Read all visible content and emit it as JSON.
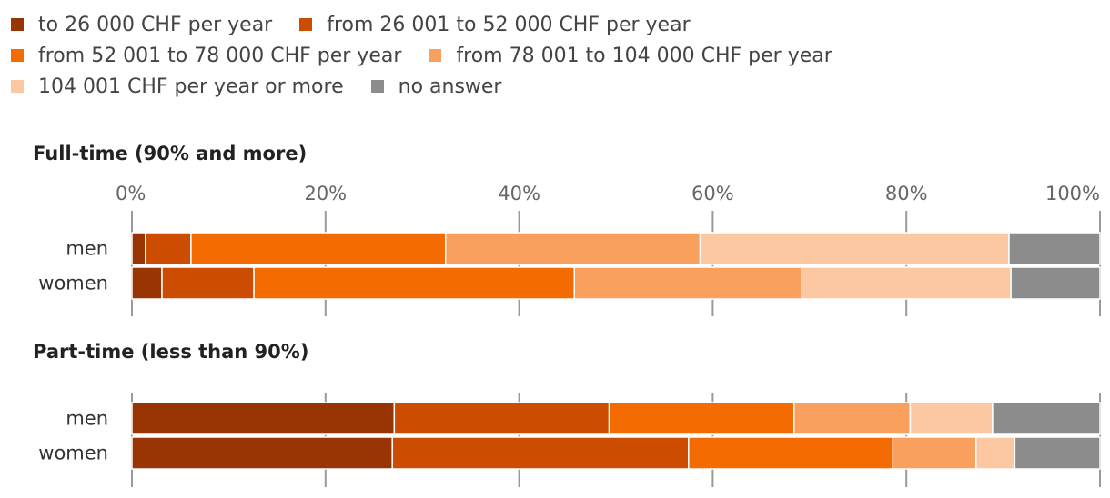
{
  "chart_data": {
    "type": "bar",
    "orientation": "horizontal",
    "stacked": true,
    "xlim": [
      0,
      100
    ],
    "x_ticks": [
      "0%",
      "20%",
      "40%",
      "60%",
      "80%",
      "100%"
    ],
    "legend": {
      "placement": "top",
      "entries": [
        {
          "label": "to 26 000 CHF per year",
          "color": "#993404"
        },
        {
          "label": "from 26 001 to 52 000 CHF per year",
          "color": "#cc4c02"
        },
        {
          "label": "from 52 001 to 78 000 CHF per year",
          "color": "#f46b02"
        },
        {
          "label": "from 78 001 to 104 000 CHF per year",
          "color": "#f9a05f"
        },
        {
          "label": "104 001 CHF per year or more",
          "color": "#fbc8a2"
        },
        {
          "label": "no answer",
          "color": "#8c8c8c"
        }
      ]
    },
    "panels": [
      {
        "title": "Full-time (90% and more)",
        "categories": [
          "men",
          "women"
        ],
        "series": [
          {
            "name": "to 26 000 CHF per year",
            "values": [
              1.4,
              3.1
            ]
          },
          {
            "name": "from 26 001 to 52 000 CHF per year",
            "values": [
              4.7,
              9.5
            ]
          },
          {
            "name": "from 52 001 to 78 000 CHF per year",
            "values": [
              26.3,
              33.1
            ]
          },
          {
            "name": "from 78 001 to 104 000 CHF per year",
            "values": [
              26.3,
              23.5
            ]
          },
          {
            "name": "104 001 CHF per year or more",
            "values": [
              31.9,
              21.6
            ]
          },
          {
            "name": "no answer",
            "values": [
              9.4,
              9.2
            ]
          }
        ]
      },
      {
        "title": "Part-time (less than 90%)",
        "categories": [
          "men",
          "women"
        ],
        "series": [
          {
            "name": "to 26 000 CHF per year",
            "values": [
              27.1,
              26.9
            ]
          },
          {
            "name": "from 26 001 to 52 000 CHF per year",
            "values": [
              22.2,
              30.6
            ]
          },
          {
            "name": "from 52 001 to 78 000 CHF per year",
            "values": [
              19.1,
              21.1
            ]
          },
          {
            "name": "from 78 001 to 104 000 CHF per year",
            "values": [
              12.0,
              8.6
            ]
          },
          {
            "name": "104 001 CHF per year or more",
            "values": [
              8.5,
              4.0
            ]
          },
          {
            "name": "no answer",
            "values": [
              11.1,
              8.8
            ]
          }
        ]
      }
    ]
  }
}
